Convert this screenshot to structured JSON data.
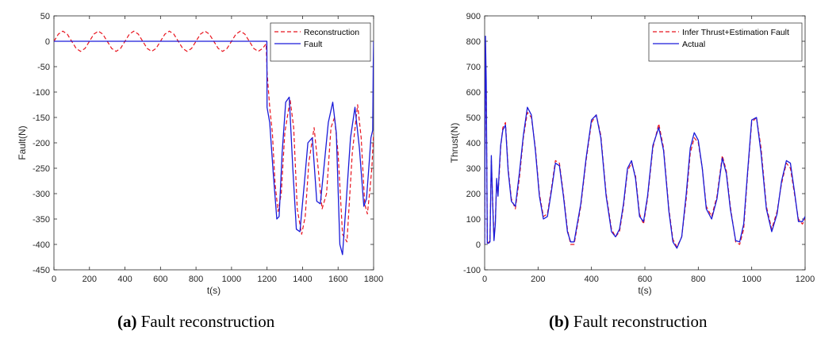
{
  "chart_data": [
    {
      "type": "line",
      "caption_label": "(a)",
      "caption_text": "Fault reconstruction",
      "xlabel": "t(s)",
      "ylabel": "Fault(N)",
      "xlim": [
        0,
        1800
      ],
      "ylim": [
        -450,
        50
      ],
      "xticks": [
        0,
        200,
        400,
        600,
        800,
        1000,
        1200,
        1400,
        1600,
        1800
      ],
      "yticks": [
        50,
        0,
        -50,
        -100,
        -150,
        -200,
        -250,
        -300,
        -350,
        -400,
        -450
      ],
      "legend_position": "top-right",
      "grid": false,
      "series": [
        {
          "name": "Reconstruction",
          "color": "#e8141e",
          "dash": "dashed",
          "x": [
            0,
            25,
            50,
            75,
            100,
            125,
            150,
            175,
            200,
            225,
            250,
            275,
            300,
            325,
            350,
            375,
            400,
            425,
            450,
            475,
            500,
            525,
            550,
            575,
            600,
            625,
            650,
            675,
            700,
            725,
            750,
            775,
            800,
            825,
            850,
            875,
            900,
            925,
            950,
            975,
            1000,
            1025,
            1050,
            1075,
            1100,
            1125,
            1150,
            1175,
            1195,
            1200,
            1215,
            1230,
            1245,
            1262,
            1280,
            1300,
            1330,
            1350,
            1370,
            1395,
            1415,
            1435,
            1465,
            1485,
            1510,
            1535,
            1560,
            1580,
            1600,
            1625,
            1650,
            1680,
            1710,
            1730,
            1750,
            1765,
            1780,
            1790,
            1800
          ],
          "y": [
            0,
            14.1,
            20,
            14.1,
            0,
            -14.1,
            -20,
            -14.1,
            0,
            14.1,
            20,
            14.1,
            0,
            -14.1,
            -20,
            -14.1,
            0,
            14.1,
            20,
            14.1,
            0,
            -14.1,
            -20,
            -14.1,
            0,
            14.1,
            20,
            14.1,
            0,
            -14.1,
            -20,
            -14.1,
            0,
            14.1,
            20,
            14.1,
            0,
            -14.1,
            -20,
            -14.1,
            0,
            14.1,
            20,
            14.1,
            0,
            -14.1,
            -20,
            -14.1,
            -5,
            -60,
            -130,
            -180,
            -280,
            -335,
            -300,
            -180,
            -115,
            -170,
            -330,
            -380,
            -345,
            -240,
            -170,
            -240,
            -330,
            -300,
            -170,
            -150,
            -220,
            -380,
            -395,
            -220,
            -125,
            -190,
            -320,
            -340,
            -290,
            -250,
            -180
          ]
        },
        {
          "name": "Fault",
          "color": "#1a1ad9",
          "dash": "solid",
          "x": [
            0,
            1199,
            1200,
            1215,
            1235,
            1255,
            1268,
            1285,
            1305,
            1325,
            1345,
            1365,
            1385,
            1410,
            1430,
            1455,
            1480,
            1500,
            1520,
            1545,
            1570,
            1590,
            1610,
            1625,
            1645,
            1670,
            1695,
            1720,
            1745,
            1760,
            1775,
            1785,
            1795,
            1798,
            1800
          ],
          "y": [
            0,
            0,
            -130,
            -160,
            -260,
            -350,
            -345,
            -220,
            -120,
            -110,
            -250,
            -370,
            -375,
            -280,
            -200,
            -190,
            -315,
            -320,
            -250,
            -160,
            -120,
            -180,
            -400,
            -420,
            -320,
            -190,
            -130,
            -210,
            -325,
            -310,
            -240,
            -190,
            -175,
            -50,
            0
          ]
        }
      ]
    },
    {
      "type": "line",
      "caption_label": "(b)",
      "caption_text": "Fault reconstruction",
      "xlabel": "t(s)",
      "ylabel": "Thrust(N)",
      "xlim": [
        0,
        1200
      ],
      "ylim": [
        -100,
        900
      ],
      "xticks": [
        0,
        200,
        400,
        600,
        800,
        1000,
        1200
      ],
      "yticks": [
        900,
        800,
        700,
        600,
        500,
        400,
        300,
        200,
        100,
        0,
        -100
      ],
      "legend_position": "top-right",
      "grid": false,
      "series": [
        {
          "name": "Infer Thrust+Estimation Fault",
          "color": "#e8141e",
          "dash": "dashed",
          "x": [
            0,
            3,
            6,
            10,
            15,
            20,
            25,
            30,
            35,
            40,
            45,
            50,
            55,
            60,
            68,
            78,
            88,
            100,
            115,
            130,
            145,
            160,
            175,
            190,
            205,
            220,
            235,
            250,
            265,
            280,
            295,
            310,
            322,
            335,
            345,
            360,
            380,
            400,
            418,
            435,
            455,
            475,
            490,
            505,
            520,
            535,
            550,
            565,
            580,
            595,
            610,
            630,
            652,
            670,
            690,
            705,
            720,
            738,
            755,
            770,
            785,
            800,
            815,
            830,
            850,
            870,
            890,
            905,
            920,
            940,
            955,
            970,
            985,
            1000,
            1018,
            1035,
            1055,
            1075,
            1095,
            1112,
            1130,
            1145,
            1160,
            1175,
            1190,
            1200
          ],
          "y": [
            0,
            780,
            600,
            10,
            5,
            20,
            330,
            180,
            20,
            90,
            250,
            200,
            280,
            380,
            460,
            480,
            300,
            180,
            140,
            260,
            420,
            520,
            500,
            380,
            200,
            110,
            120,
            220,
            330,
            320,
            200,
            60,
            0,
            0,
            60,
            150,
            330,
            480,
            510,
            430,
            200,
            60,
            30,
            50,
            150,
            290,
            320,
            270,
            120,
            80,
            180,
            380,
            475,
            380,
            140,
            20,
            -10,
            30,
            180,
            360,
            420,
            400,
            300,
            150,
            110,
            190,
            350,
            290,
            150,
            10,
            0,
            60,
            280,
            480,
            500,
            380,
            150,
            60,
            130,
            240,
            320,
            300,
            200,
            100,
            80,
            100
          ]
        },
        {
          "name": "Actual",
          "color": "#1a1ad9",
          "dash": "solid",
          "x": [
            0,
            3,
            6,
            10,
            15,
            20,
            25,
            30,
            35,
            40,
            45,
            50,
            55,
            60,
            68,
            78,
            88,
            100,
            115,
            130,
            145,
            160,
            175,
            190,
            205,
            220,
            235,
            250,
            265,
            280,
            295,
            310,
            322,
            335,
            345,
            360,
            380,
            400,
            418,
            435,
            455,
            475,
            490,
            505,
            520,
            535,
            550,
            565,
            580,
            595,
            610,
            630,
            652,
            670,
            690,
            705,
            720,
            738,
            755,
            770,
            785,
            800,
            815,
            830,
            850,
            870,
            890,
            905,
            920,
            940,
            955,
            970,
            985,
            1000,
            1018,
            1035,
            1055,
            1075,
            1095,
            1112,
            1130,
            1145,
            1160,
            1175,
            1190,
            1200
          ],
          "y": [
            0,
            820,
            640,
            5,
            5,
            10,
            350,
            160,
            15,
            80,
            260,
            190,
            300,
            390,
            450,
            470,
            290,
            170,
            150,
            280,
            430,
            540,
            510,
            370,
            190,
            100,
            110,
            210,
            320,
            310,
            190,
            50,
            10,
            10,
            70,
            160,
            340,
            490,
            510,
            420,
            190,
            50,
            30,
            60,
            160,
            300,
            330,
            260,
            110,
            90,
            190,
            390,
            460,
            370,
            130,
            10,
            -15,
            30,
            200,
            380,
            440,
            410,
            300,
            140,
            100,
            180,
            340,
            280,
            140,
            15,
            10,
            80,
            290,
            490,
            500,
            360,
            140,
            50,
            120,
            250,
            330,
            320,
            210,
            90,
            90,
            110
          ]
        }
      ]
    }
  ]
}
